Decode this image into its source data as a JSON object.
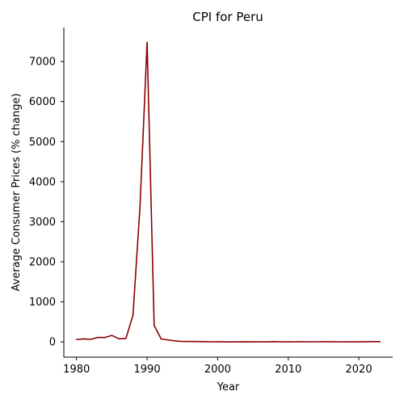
{
  "chart_data": {
    "type": "line",
    "title": "CPI for Peru",
    "xlabel": "Year",
    "ylabel": "Average Consumer Prices (% change)",
    "xlim": [
      1978.2,
      2024.8
    ],
    "ylim": [
      -380,
      7850
    ],
    "x_ticks": [
      1980,
      1990,
      2000,
      2010,
      2020
    ],
    "y_ticks": [
      0,
      1000,
      2000,
      3000,
      4000,
      5000,
      6000,
      7000
    ],
    "grid": false,
    "legend": "none",
    "line_color": "#8b0000",
    "series": [
      {
        "x": [
          1980,
          1981,
          1982,
          1983,
          1984,
          1985,
          1986,
          1987,
          1988,
          1989,
          1990,
          1991,
          1992,
          1993,
          1994,
          1995,
          1996,
          1997,
          1998,
          1999,
          2000,
          2001,
          2002,
          2003,
          2004,
          2005,
          2006,
          2007,
          2008,
          2009,
          2010,
          2011,
          2012,
          2013,
          2014,
          2015,
          2016,
          2017,
          2018,
          2019,
          2020,
          2021,
          2022,
          2023
        ],
        "values": [
          59,
          75,
          64,
          111,
          110,
          163,
          78,
          86,
          668,
          3399,
          7482,
          410,
          74,
          49,
          24,
          11,
          12,
          9,
          7,
          3,
          4,
          2,
          0,
          2,
          4,
          2,
          2,
          2,
          6,
          3,
          2,
          3,
          4,
          3,
          3,
          4,
          4,
          3,
          1,
          2,
          2,
          4,
          8,
          6
        ]
      }
    ]
  }
}
